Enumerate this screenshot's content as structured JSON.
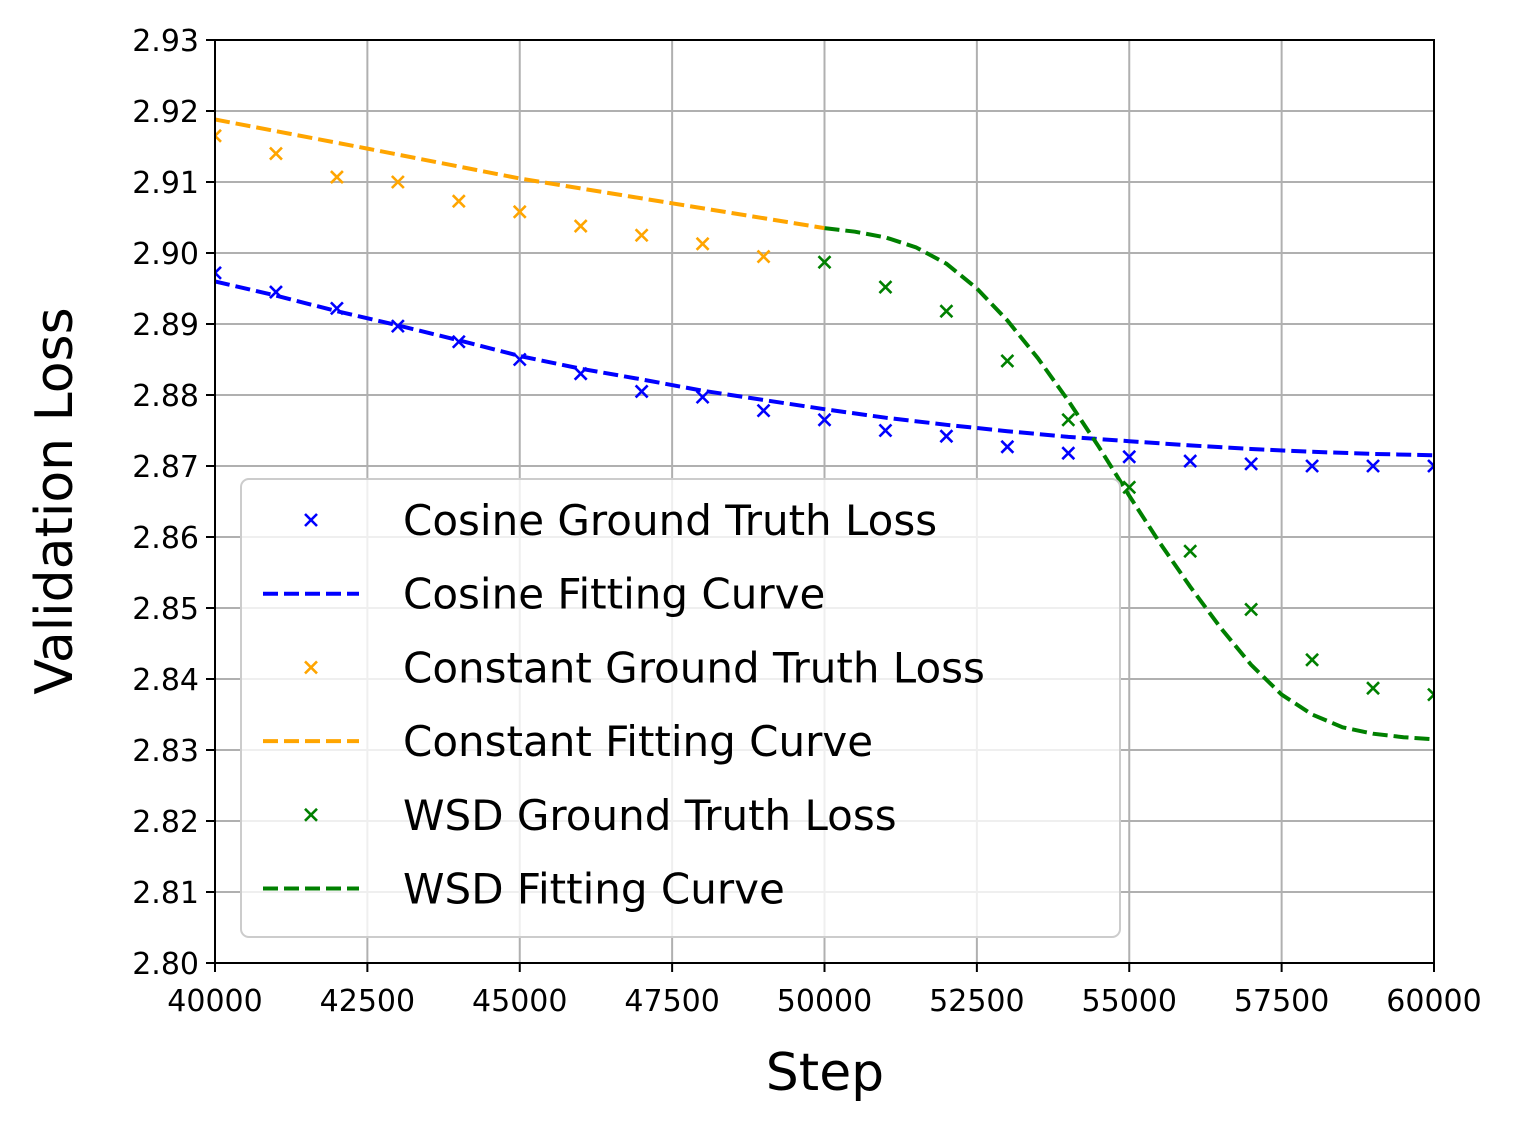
{
  "chart_data": {
    "type": "line",
    "title": "",
    "xlabel": "Step",
    "ylabel": "Validation Loss",
    "xlim": [
      40000,
      60000
    ],
    "ylim": [
      2.8,
      2.93
    ],
    "xticks": [
      "40000",
      "42500",
      "45000",
      "47500",
      "50000",
      "52500",
      "55000",
      "57500",
      "60000"
    ],
    "yticks": [
      "2.80",
      "2.81",
      "2.82",
      "2.83",
      "2.84",
      "2.85",
      "2.86",
      "2.87",
      "2.88",
      "2.89",
      "2.90",
      "2.91",
      "2.92",
      "2.93"
    ],
    "grid": true,
    "legend_position": "lower-left",
    "series": [
      {
        "name": "Cosine Ground Truth Loss",
        "kind": "markers",
        "marker": "x",
        "color": "#0000ff",
        "x": [
          40000,
          41000,
          42000,
          43000,
          44000,
          45000,
          46000,
          47000,
          48000,
          49000,
          50000,
          51000,
          52000,
          53000,
          54000,
          55000,
          56000,
          57000,
          58000,
          59000,
          60000
        ],
        "y": [
          2.8972,
          2.8945,
          2.8922,
          2.8897,
          2.8875,
          2.885,
          2.883,
          2.8805,
          2.8797,
          2.8778,
          2.8765,
          2.875,
          2.8742,
          2.8727,
          2.8718,
          2.8713,
          2.8707,
          2.8703,
          2.87,
          2.87,
          2.87
        ]
      },
      {
        "name": "Cosine Fitting Curve",
        "kind": "dashed",
        "color": "#0000ff",
        "x": [
          40000,
          41000,
          42000,
          43000,
          44000,
          45000,
          46000,
          47000,
          48000,
          49000,
          50000,
          51000,
          52000,
          53000,
          54000,
          55000,
          56000,
          57000,
          58000,
          59000,
          60000
        ],
        "y": [
          2.896,
          2.894,
          2.8918,
          2.8898,
          2.8877,
          2.8855,
          2.8837,
          2.8822,
          2.8806,
          2.8793,
          2.878,
          2.8768,
          2.8758,
          2.8749,
          2.8741,
          2.8735,
          2.8729,
          2.8724,
          2.872,
          2.8717,
          2.8715
        ]
      },
      {
        "name": "Constant Ground Truth Loss",
        "kind": "markers",
        "marker": "x",
        "color": "#ffa500",
        "x": [
          40000,
          41000,
          42000,
          43000,
          44000,
          45000,
          46000,
          47000,
          48000,
          49000
        ],
        "y": [
          2.9165,
          2.914,
          2.9107,
          2.91,
          2.9073,
          2.9058,
          2.9038,
          2.9025,
          2.9013,
          2.8995
        ]
      },
      {
        "name": "Constant Fitting Curve",
        "kind": "dashed",
        "color": "#ffa500",
        "x": [
          40000,
          42500,
          45000,
          47500,
          50000
        ],
        "y": [
          2.9188,
          2.9147,
          2.9105,
          2.907,
          2.9035
        ]
      },
      {
        "name": "WSD Ground Truth Loss",
        "kind": "markers",
        "marker": "x",
        "color": "#008000",
        "x": [
          50000,
          51000,
          52000,
          53000,
          54000,
          55000,
          56000,
          57000,
          58000,
          59000,
          60000
        ],
        "y": [
          2.8987,
          2.8952,
          2.8918,
          2.8848,
          2.8765,
          2.867,
          2.858,
          2.8498,
          2.8427,
          2.8387,
          2.8378
        ]
      },
      {
        "name": "WSD Fitting Curve",
        "kind": "dashed",
        "color": "#008000",
        "x": [
          50000,
          50500,
          51000,
          51500,
          52000,
          52500,
          53000,
          53500,
          54000,
          54500,
          55000,
          55500,
          56000,
          56500,
          57000,
          57500,
          58000,
          58500,
          59000,
          59500,
          60000
        ],
        "y": [
          2.9035,
          2.903,
          2.9022,
          2.9008,
          2.8985,
          2.895,
          2.8905,
          2.8852,
          2.8792,
          2.8727,
          2.8658,
          2.8592,
          2.853,
          2.8472,
          2.842,
          2.8378,
          2.835,
          2.8332,
          2.8323,
          2.8318,
          2.8315
        ]
      }
    ]
  }
}
